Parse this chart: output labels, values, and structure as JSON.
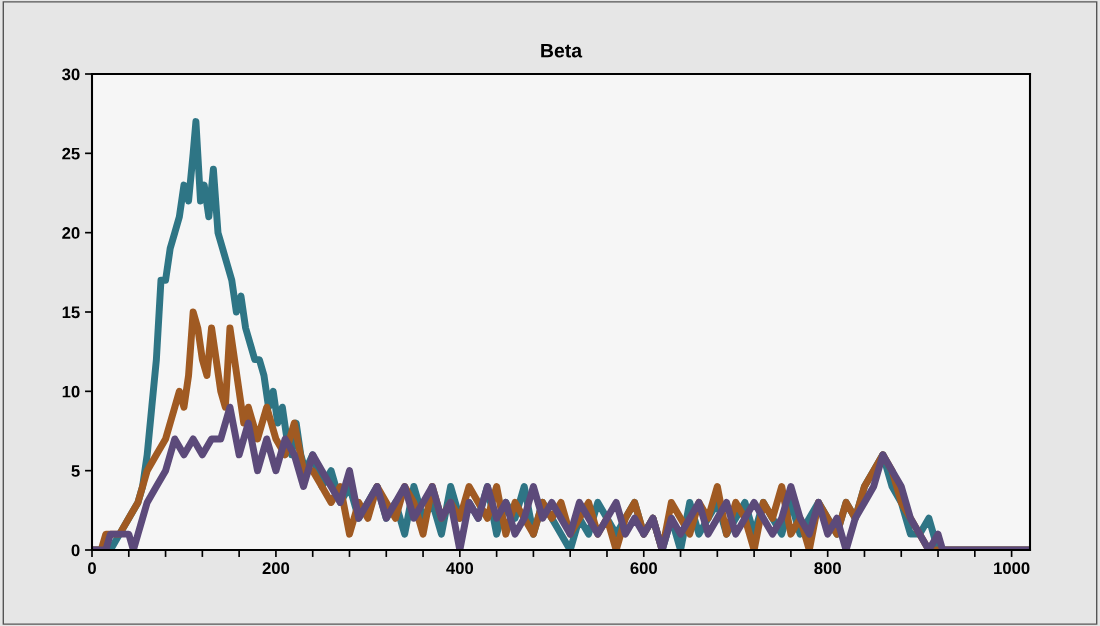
{
  "chart_data": {
    "type": "line",
    "title": "Beta",
    "xlim": [
      0,
      1020
    ],
    "ylim": [
      0,
      30
    ],
    "xticks": [
      0,
      {
        "value": 40,
        "label": null
      },
      {
        "value": 80,
        "label": null
      },
      {
        "value": 120,
        "label": null
      },
      {
        "value": 160,
        "label": null
      },
      200,
      {
        "value": 240,
        "label": null
      },
      {
        "value": 280,
        "label": null
      },
      {
        "value": 320,
        "label": null
      },
      {
        "value": 360,
        "label": null
      },
      400,
      {
        "value": 440,
        "label": null
      },
      {
        "value": 480,
        "label": null
      },
      {
        "value": 520,
        "label": null
      },
      {
        "value": 560,
        "label": null
      },
      600,
      {
        "value": 640,
        "label": null
      },
      {
        "value": 680,
        "label": null
      },
      {
        "value": 720,
        "label": null
      },
      {
        "value": 760,
        "label": null
      },
      800,
      {
        "value": 840,
        "label": null
      },
      {
        "value": 880,
        "label": null
      },
      {
        "value": 920,
        "label": null
      },
      {
        "value": 960,
        "label": null
      },
      1000
    ],
    "yticks": [
      0,
      5,
      10,
      15,
      20,
      25,
      30
    ],
    "grid": false,
    "legend": false,
    "series": [
      {
        "color": "#2e7585",
        "x": [
          0,
          20,
          30,
          40,
          50,
          55,
          60,
          65,
          70,
          75,
          80,
          85,
          90,
          95,
          100,
          105,
          110,
          113,
          118,
          122,
          127,
          132,
          137,
          142,
          147,
          152,
          157,
          162,
          167,
          172,
          177,
          182,
          187,
          192,
          197,
          202,
          207,
          212,
          217,
          222,
          227,
          232,
          240,
          250,
          260,
          270,
          280,
          290,
          300,
          310,
          320,
          330,
          340,
          350,
          360,
          370,
          380,
          390,
          400,
          410,
          420,
          430,
          440,
          450,
          460,
          470,
          480,
          490,
          500,
          510,
          520,
          530,
          540,
          550,
          560,
          570,
          580,
          590,
          600,
          610,
          620,
          630,
          640,
          650,
          660,
          670,
          680,
          690,
          700,
          710,
          720,
          730,
          740,
          750,
          760,
          770,
          780,
          790,
          800,
          810,
          820,
          830,
          840,
          850,
          860,
          870,
          880,
          890,
          900,
          910,
          920,
          1020
        ],
        "values": [
          0,
          0,
          1,
          2,
          3,
          4,
          6,
          9,
          12,
          17,
          17,
          19,
          20,
          21,
          23,
          22,
          25,
          27,
          22,
          23,
          21,
          24,
          20,
          19,
          18,
          17,
          15,
          16,
          14,
          13,
          12,
          12,
          11,
          9,
          10,
          8,
          9,
          7,
          6,
          8,
          6,
          5,
          6,
          4,
          5,
          3,
          4,
          2,
          3,
          4,
          2,
          3,
          1,
          4,
          2,
          3,
          1,
          4,
          2,
          3,
          2,
          4,
          1,
          3,
          2,
          4,
          1,
          3,
          2,
          1,
          0,
          2,
          1,
          3,
          2,
          1,
          2,
          3,
          1,
          2,
          0,
          2,
          0,
          3,
          1,
          2,
          3,
          1,
          2,
          3,
          1,
          3,
          2,
          1,
          3,
          1,
          2,
          3,
          2,
          1,
          3,
          2,
          4,
          5,
          6,
          4,
          3,
          1,
          1,
          2,
          0,
          0
        ]
      },
      {
        "color": "#a05a22",
        "x": [
          0,
          10,
          15,
          30,
          40,
          50,
          60,
          70,
          80,
          90,
          95,
          100,
          105,
          110,
          115,
          120,
          125,
          130,
          135,
          140,
          145,
          150,
          155,
          160,
          165,
          170,
          180,
          190,
          200,
          210,
          220,
          230,
          240,
          250,
          260,
          270,
          280,
          290,
          300,
          310,
          320,
          330,
          340,
          350,
          360,
          370,
          380,
          390,
          400,
          410,
          420,
          430,
          440,
          450,
          460,
          470,
          480,
          490,
          500,
          510,
          520,
          530,
          540,
          550,
          560,
          570,
          580,
          590,
          600,
          610,
          620,
          630,
          640,
          650,
          660,
          670,
          680,
          690,
          700,
          710,
          720,
          730,
          740,
          750,
          760,
          770,
          780,
          790,
          800,
          810,
          820,
          830,
          840,
          850,
          860,
          870,
          880,
          890,
          900,
          910,
          1020
        ],
        "values": [
          0,
          0,
          1,
          1,
          2,
          3,
          5,
          6,
          7,
          9,
          10,
          9,
          11,
          15,
          14,
          12,
          11,
          14,
          12,
          10,
          9,
          14,
          12,
          10,
          8,
          9,
          7,
          9,
          7,
          6,
          8,
          5,
          5,
          4,
          3,
          4,
          1,
          3,
          2,
          4,
          3,
          2,
          4,
          3,
          1,
          4,
          2,
          3,
          2,
          4,
          3,
          2,
          4,
          1,
          3,
          2,
          1,
          3,
          2,
          3,
          1,
          2,
          3,
          1,
          2,
          0,
          2,
          3,
          1,
          2,
          0,
          3,
          2,
          1,
          3,
          2,
          4,
          1,
          3,
          2,
          0,
          3,
          2,
          4,
          1,
          2,
          0,
          3,
          2,
          1,
          3,
          2,
          4,
          5,
          6,
          5,
          3,
          2,
          1,
          0,
          0
        ]
      },
      {
        "color": "#5c4a7a",
        "x": [
          0,
          15,
          20,
          40,
          45,
          50,
          55,
          60,
          70,
          80,
          90,
          100,
          110,
          120,
          130,
          140,
          150,
          160,
          170,
          180,
          190,
          200,
          210,
          220,
          230,
          240,
          250,
          260,
          270,
          280,
          290,
          300,
          310,
          320,
          330,
          340,
          350,
          360,
          370,
          380,
          390,
          400,
          410,
          420,
          430,
          440,
          450,
          460,
          470,
          480,
          490,
          500,
          510,
          520,
          530,
          540,
          550,
          560,
          570,
          580,
          590,
          600,
          610,
          620,
          630,
          640,
          650,
          660,
          670,
          680,
          690,
          700,
          710,
          720,
          730,
          740,
          750,
          760,
          770,
          780,
          790,
          800,
          810,
          820,
          830,
          840,
          850,
          860,
          870,
          880,
          890,
          900,
          910,
          920,
          925,
          1020
        ],
        "values": [
          0,
          0,
          1,
          1,
          0,
          1,
          2,
          3,
          4,
          5,
          7,
          6,
          7,
          6,
          7,
          7,
          9,
          6,
          8,
          5,
          7,
          5,
          7,
          6,
          4,
          6,
          5,
          4,
          3,
          5,
          2,
          3,
          4,
          2,
          3,
          4,
          2,
          3,
          4,
          2,
          3,
          0,
          3,
          2,
          4,
          2,
          3,
          1,
          2,
          4,
          2,
          3,
          2,
          1,
          3,
          2,
          1,
          2,
          3,
          1,
          2,
          1,
          2,
          0,
          2,
          1,
          2,
          3,
          1,
          2,
          3,
          1,
          2,
          3,
          2,
          1,
          2,
          4,
          2,
          1,
          3,
          1,
          2,
          0,
          2,
          3,
          4,
          6,
          5,
          4,
          2,
          1,
          0,
          1,
          0,
          0
        ]
      }
    ]
  }
}
